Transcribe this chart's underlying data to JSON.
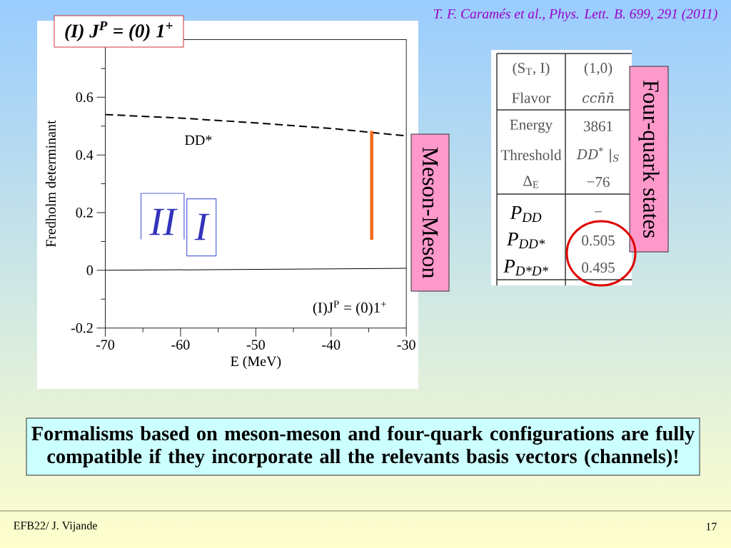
{
  "chart_data": [
    {
      "type": "line",
      "title": "(I) J$^{P}$ = (0) 1$^{+}$",
      "xlabel": "E (MeV)",
      "ylabel": "Fredholm determinant",
      "xlim": [
        -70,
        -30
      ],
      "xticks": [
        -70,
        {
          "value": -65,
          "label": null
        },
        -60,
        {
          "value": -55,
          "label": null
        },
        -50,
        {
          "value": -45,
          "label": null
        },
        -40,
        {
          "value": -35,
          "label": null
        },
        -30
      ],
      "ylim": [
        -0.2,
        0.8
      ],
      "yticks": [
        -0.2,
        {
          "value": -0.1,
          "label": null
        },
        0,
        {
          "value": 0.1,
          "label": null
        },
        0.2,
        {
          "value": 0.3,
          "label": null
        },
        0.4,
        {
          "value": 0.5,
          "label": null
        },
        0.6,
        {
          "value": 0.7,
          "label": null
        }
      ],
      "series": [
        {
          "name": "DD*",
          "color": "#000000",
          "line_style": "dashed",
          "x": [
            -70,
            -60,
            -50,
            -40,
            -35,
            -30
          ],
          "values": [
            0.54,
            0.528,
            0.511,
            0.492,
            0.479,
            0.466
          ]
        },
        {
          "color": "#000000",
          "line_style": "solid",
          "x": [
            -70,
            -30
          ],
          "values": [
            0,
            0.007
          ]
        },
        {
          "color": "#f26b1d",
          "line_style": "solid",
          "x": [
            -34.6,
            -34.6
          ],
          "values": [
            0.483,
            0.106
          ]
        }
      ],
      "annotations": [
        "II",
        "I",
        "(I)J$^{P}$ = (0)1$^{+}$",
        "Meson-Meson",
        "T. F. Caramés et al., Phys. Lett. B. 699, 291 (2011)",
        "Formalisms based on meson-meson and four-quark configurations are fully compatible if they incorporate all the relevants basis vectors (channels)!",
        "EFB22/ J. Vijande",
        "17"
      ]
    },
    {
      "type": "other",
      "title": "Four-quark states",
      "annotations": [
        "(S$_{T}$, I)",
        "(1,0)",
        "Flavor",
        "ccn̄n̄",
        "Energy",
        "3861",
        "Threshold",
        "DD$^{*}$ |$_{S}$",
        "Δ$_{E}$",
        "−76",
        "P$_{DD}$",
        "−",
        "P$_{DD*}$",
        "0.505",
        "P$_{D*D*}$",
        "0.495"
      ]
    }
  ]
}
